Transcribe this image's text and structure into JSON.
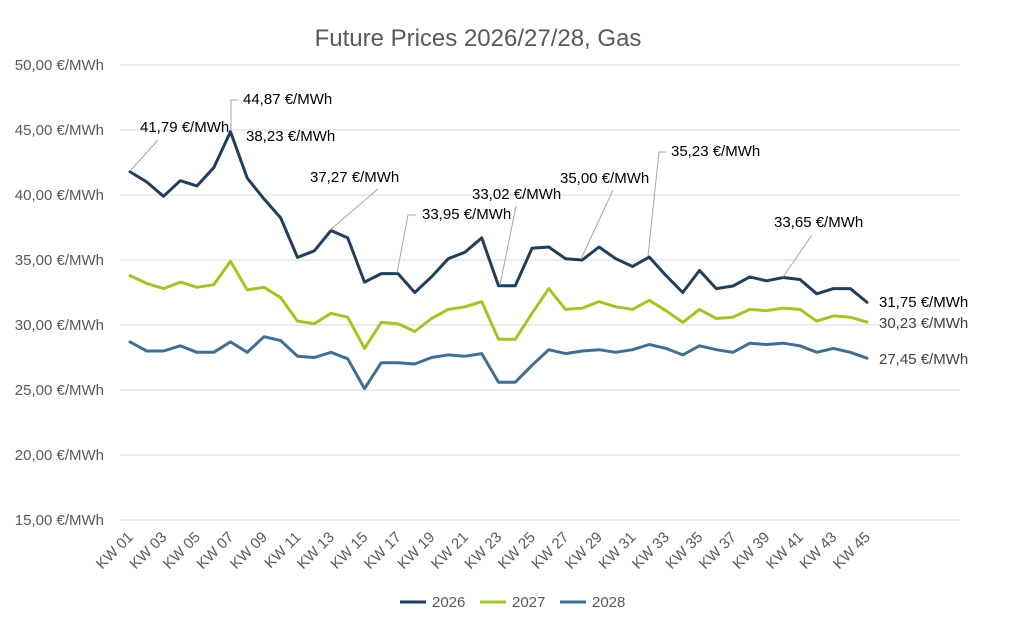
{
  "chart_data": {
    "type": "line",
    "title": "Future Prices 2026/27/28, Gas",
    "xlabel": "",
    "ylabel": "",
    "ylim": [
      15,
      50
    ],
    "y_ticks": [
      "15,00 €/MWh",
      "20,00 €/MWh",
      "25,00 €/MWh",
      "30,00 €/MWh",
      "35,00 €/MWh",
      "40,00 €/MWh",
      "45,00 €/MWh",
      "50,00 €/MWh"
    ],
    "y_tick_values": [
      15,
      20,
      25,
      30,
      35,
      40,
      45,
      50
    ],
    "x_tick_labels": [
      "KW 01",
      "KW 03",
      "KW 05",
      "KW 07",
      "KW 09",
      "KW 11",
      "KW 13",
      "KW 15",
      "KW 17",
      "KW 19",
      "KW 21",
      "KW 23",
      "KW 25",
      "KW 27",
      "KW 29",
      "KW 31",
      "KW 33",
      "KW 35",
      "KW 37",
      "KW 39",
      "KW 41",
      "KW 43",
      "KW 45"
    ],
    "x": [
      "KW 01",
      "KW 02",
      "KW 03",
      "KW 04",
      "KW 05",
      "KW 06",
      "KW 07",
      "KW 08",
      "KW 09",
      "KW 10",
      "KW 11",
      "KW 12",
      "KW 13",
      "KW 14",
      "KW 15",
      "KW 16",
      "KW 17",
      "KW 18",
      "KW 19",
      "KW 20",
      "KW 21",
      "KW 22",
      "KW 23",
      "KW 24",
      "KW 25",
      "KW 26",
      "KW 27",
      "KW 28",
      "KW 29",
      "KW 30",
      "KW 31",
      "KW 32",
      "KW 33",
      "KW 34",
      "KW 35",
      "KW 36",
      "KW 37",
      "KW 38",
      "KW 39",
      "KW 40",
      "KW 41",
      "KW 42",
      "KW 43",
      "KW 44",
      "KW 45",
      "KW 46"
    ],
    "series": [
      {
        "name": "2026",
        "color": "#1f3f5c",
        "values": [
          41.79,
          41.0,
          39.9,
          41.1,
          40.7,
          42.1,
          44.87,
          41.3,
          39.7,
          38.23,
          35.2,
          35.7,
          37.27,
          36.7,
          33.3,
          33.95,
          33.95,
          32.5,
          33.7,
          35.1,
          35.6,
          36.7,
          33.02,
          33.02,
          35.9,
          36.0,
          35.1,
          35.0,
          36.0,
          35.1,
          34.5,
          35.23,
          33.8,
          32.5,
          34.2,
          32.8,
          33.0,
          33.7,
          33.4,
          33.65,
          33.5,
          32.4,
          32.8,
          32.8,
          31.75,
          null
        ]
      },
      {
        "name": "2027",
        "color": "#a3c51f",
        "values": [
          33.8,
          33.2,
          32.8,
          33.3,
          32.9,
          33.1,
          34.9,
          32.7,
          32.9,
          32.1,
          30.3,
          30.1,
          30.9,
          30.6,
          28.2,
          30.2,
          30.1,
          29.5,
          30.5,
          31.2,
          31.4,
          31.8,
          28.9,
          28.9,
          30.9,
          32.8,
          31.2,
          31.3,
          31.8,
          31.4,
          31.2,
          31.9,
          31.1,
          30.2,
          31.2,
          30.5,
          30.6,
          31.2,
          31.1,
          31.3,
          31.2,
          30.3,
          30.7,
          30.6,
          30.23,
          null
        ]
      },
      {
        "name": "2028",
        "color": "#3e6f96",
        "values": [
          28.7,
          28.0,
          28.0,
          28.4,
          27.9,
          27.9,
          28.7,
          27.9,
          29.1,
          28.8,
          27.6,
          27.5,
          27.9,
          27.4,
          25.1,
          27.1,
          27.1,
          27.0,
          27.5,
          27.7,
          27.6,
          27.8,
          25.6,
          25.6,
          26.9,
          28.1,
          27.8,
          28.0,
          28.1,
          27.9,
          28.1,
          28.5,
          28.2,
          27.7,
          28.4,
          28.1,
          27.9,
          28.6,
          28.5,
          28.6,
          28.4,
          27.9,
          28.2,
          27.9,
          27.45,
          null
        ]
      }
    ],
    "annotations": [
      {
        "text": "41,79 €/MWh",
        "series": "2026",
        "index": 0
      },
      {
        "text": "44,87 €/MWh",
        "series": "2026",
        "index": 6
      },
      {
        "text": "38,23 €/MWh",
        "series": "2026",
        "index": 9
      },
      {
        "text": "37,27 €/MWh",
        "series": "2026",
        "index": 12
      },
      {
        "text": "33,95 €/MWh",
        "series": "2026",
        "index": 16
      },
      {
        "text": "33,02 €/MWh",
        "series": "2026",
        "index": 22
      },
      {
        "text": "35,00 €/MWh",
        "series": "2026",
        "index": 27
      },
      {
        "text": "35,23 €/MWh",
        "series": "2026",
        "index": 31
      },
      {
        "text": "33,65 €/MWh",
        "series": "2026",
        "index": 39
      },
      {
        "text": "31,75 €/MWh",
        "series": "2026",
        "index": 44
      },
      {
        "text": "30,23 €/MWh",
        "series": "2027",
        "index": 44
      },
      {
        "text": "27,45 €/MWh",
        "series": "2028",
        "index": 44
      }
    ],
    "grid": true,
    "legend_position": "bottom"
  }
}
